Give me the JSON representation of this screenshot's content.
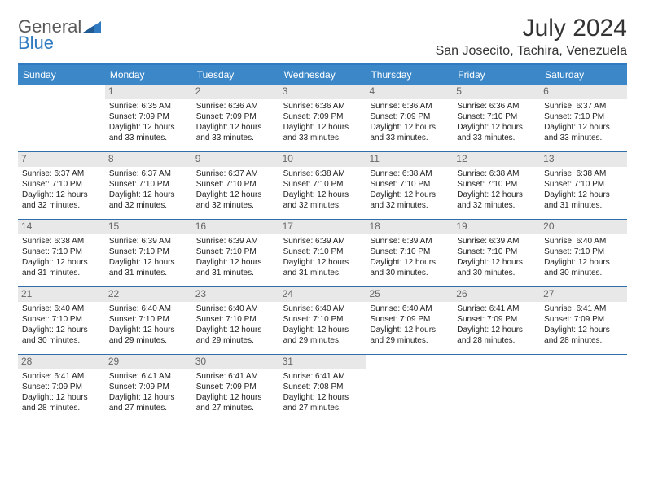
{
  "brand": {
    "word1": "General",
    "word2": "Blue"
  },
  "title": "July 2024",
  "location": "San Josecito, Tachira, Venezuela",
  "colors": {
    "header_bg": "#3b87c8",
    "header_text": "#ffffff",
    "rule": "#2f6ea8",
    "daynum_bg": "#e8e8e8",
    "daynum_color": "#666666",
    "brand_gray": "#5a5a5a",
    "brand_blue": "#2f7ac0",
    "body_text": "#222222"
  },
  "day_names": [
    "Sunday",
    "Monday",
    "Tuesday",
    "Wednesday",
    "Thursday",
    "Friday",
    "Saturday"
  ],
  "weeks": [
    [
      {
        "n": "",
        "l1": "",
        "l2": "",
        "l3": "",
        "l4": ""
      },
      {
        "n": "1",
        "l1": "Sunrise: 6:35 AM",
        "l2": "Sunset: 7:09 PM",
        "l3": "Daylight: 12 hours",
        "l4": "and 33 minutes."
      },
      {
        "n": "2",
        "l1": "Sunrise: 6:36 AM",
        "l2": "Sunset: 7:09 PM",
        "l3": "Daylight: 12 hours",
        "l4": "and 33 minutes."
      },
      {
        "n": "3",
        "l1": "Sunrise: 6:36 AM",
        "l2": "Sunset: 7:09 PM",
        "l3": "Daylight: 12 hours",
        "l4": "and 33 minutes."
      },
      {
        "n": "4",
        "l1": "Sunrise: 6:36 AM",
        "l2": "Sunset: 7:09 PM",
        "l3": "Daylight: 12 hours",
        "l4": "and 33 minutes."
      },
      {
        "n": "5",
        "l1": "Sunrise: 6:36 AM",
        "l2": "Sunset: 7:10 PM",
        "l3": "Daylight: 12 hours",
        "l4": "and 33 minutes."
      },
      {
        "n": "6",
        "l1": "Sunrise: 6:37 AM",
        "l2": "Sunset: 7:10 PM",
        "l3": "Daylight: 12 hours",
        "l4": "and 33 minutes."
      }
    ],
    [
      {
        "n": "7",
        "l1": "Sunrise: 6:37 AM",
        "l2": "Sunset: 7:10 PM",
        "l3": "Daylight: 12 hours",
        "l4": "and 32 minutes."
      },
      {
        "n": "8",
        "l1": "Sunrise: 6:37 AM",
        "l2": "Sunset: 7:10 PM",
        "l3": "Daylight: 12 hours",
        "l4": "and 32 minutes."
      },
      {
        "n": "9",
        "l1": "Sunrise: 6:37 AM",
        "l2": "Sunset: 7:10 PM",
        "l3": "Daylight: 12 hours",
        "l4": "and 32 minutes."
      },
      {
        "n": "10",
        "l1": "Sunrise: 6:38 AM",
        "l2": "Sunset: 7:10 PM",
        "l3": "Daylight: 12 hours",
        "l4": "and 32 minutes."
      },
      {
        "n": "11",
        "l1": "Sunrise: 6:38 AM",
        "l2": "Sunset: 7:10 PM",
        "l3": "Daylight: 12 hours",
        "l4": "and 32 minutes."
      },
      {
        "n": "12",
        "l1": "Sunrise: 6:38 AM",
        "l2": "Sunset: 7:10 PM",
        "l3": "Daylight: 12 hours",
        "l4": "and 32 minutes."
      },
      {
        "n": "13",
        "l1": "Sunrise: 6:38 AM",
        "l2": "Sunset: 7:10 PM",
        "l3": "Daylight: 12 hours",
        "l4": "and 31 minutes."
      }
    ],
    [
      {
        "n": "14",
        "l1": "Sunrise: 6:38 AM",
        "l2": "Sunset: 7:10 PM",
        "l3": "Daylight: 12 hours",
        "l4": "and 31 minutes."
      },
      {
        "n": "15",
        "l1": "Sunrise: 6:39 AM",
        "l2": "Sunset: 7:10 PM",
        "l3": "Daylight: 12 hours",
        "l4": "and 31 minutes."
      },
      {
        "n": "16",
        "l1": "Sunrise: 6:39 AM",
        "l2": "Sunset: 7:10 PM",
        "l3": "Daylight: 12 hours",
        "l4": "and 31 minutes."
      },
      {
        "n": "17",
        "l1": "Sunrise: 6:39 AM",
        "l2": "Sunset: 7:10 PM",
        "l3": "Daylight: 12 hours",
        "l4": "and 31 minutes."
      },
      {
        "n": "18",
        "l1": "Sunrise: 6:39 AM",
        "l2": "Sunset: 7:10 PM",
        "l3": "Daylight: 12 hours",
        "l4": "and 30 minutes."
      },
      {
        "n": "19",
        "l1": "Sunrise: 6:39 AM",
        "l2": "Sunset: 7:10 PM",
        "l3": "Daylight: 12 hours",
        "l4": "and 30 minutes."
      },
      {
        "n": "20",
        "l1": "Sunrise: 6:40 AM",
        "l2": "Sunset: 7:10 PM",
        "l3": "Daylight: 12 hours",
        "l4": "and 30 minutes."
      }
    ],
    [
      {
        "n": "21",
        "l1": "Sunrise: 6:40 AM",
        "l2": "Sunset: 7:10 PM",
        "l3": "Daylight: 12 hours",
        "l4": "and 30 minutes."
      },
      {
        "n": "22",
        "l1": "Sunrise: 6:40 AM",
        "l2": "Sunset: 7:10 PM",
        "l3": "Daylight: 12 hours",
        "l4": "and 29 minutes."
      },
      {
        "n": "23",
        "l1": "Sunrise: 6:40 AM",
        "l2": "Sunset: 7:10 PM",
        "l3": "Daylight: 12 hours",
        "l4": "and 29 minutes."
      },
      {
        "n": "24",
        "l1": "Sunrise: 6:40 AM",
        "l2": "Sunset: 7:10 PM",
        "l3": "Daylight: 12 hours",
        "l4": "and 29 minutes."
      },
      {
        "n": "25",
        "l1": "Sunrise: 6:40 AM",
        "l2": "Sunset: 7:09 PM",
        "l3": "Daylight: 12 hours",
        "l4": "and 29 minutes."
      },
      {
        "n": "26",
        "l1": "Sunrise: 6:41 AM",
        "l2": "Sunset: 7:09 PM",
        "l3": "Daylight: 12 hours",
        "l4": "and 28 minutes."
      },
      {
        "n": "27",
        "l1": "Sunrise: 6:41 AM",
        "l2": "Sunset: 7:09 PM",
        "l3": "Daylight: 12 hours",
        "l4": "and 28 minutes."
      }
    ],
    [
      {
        "n": "28",
        "l1": "Sunrise: 6:41 AM",
        "l2": "Sunset: 7:09 PM",
        "l3": "Daylight: 12 hours",
        "l4": "and 28 minutes."
      },
      {
        "n": "29",
        "l1": "Sunrise: 6:41 AM",
        "l2": "Sunset: 7:09 PM",
        "l3": "Daylight: 12 hours",
        "l4": "and 27 minutes."
      },
      {
        "n": "30",
        "l1": "Sunrise: 6:41 AM",
        "l2": "Sunset: 7:09 PM",
        "l3": "Daylight: 12 hours",
        "l4": "and 27 minutes."
      },
      {
        "n": "31",
        "l1": "Sunrise: 6:41 AM",
        "l2": "Sunset: 7:08 PM",
        "l3": "Daylight: 12 hours",
        "l4": "and 27 minutes."
      },
      {
        "n": "",
        "l1": "",
        "l2": "",
        "l3": "",
        "l4": ""
      },
      {
        "n": "",
        "l1": "",
        "l2": "",
        "l3": "",
        "l4": ""
      },
      {
        "n": "",
        "l1": "",
        "l2": "",
        "l3": "",
        "l4": ""
      }
    ]
  ]
}
